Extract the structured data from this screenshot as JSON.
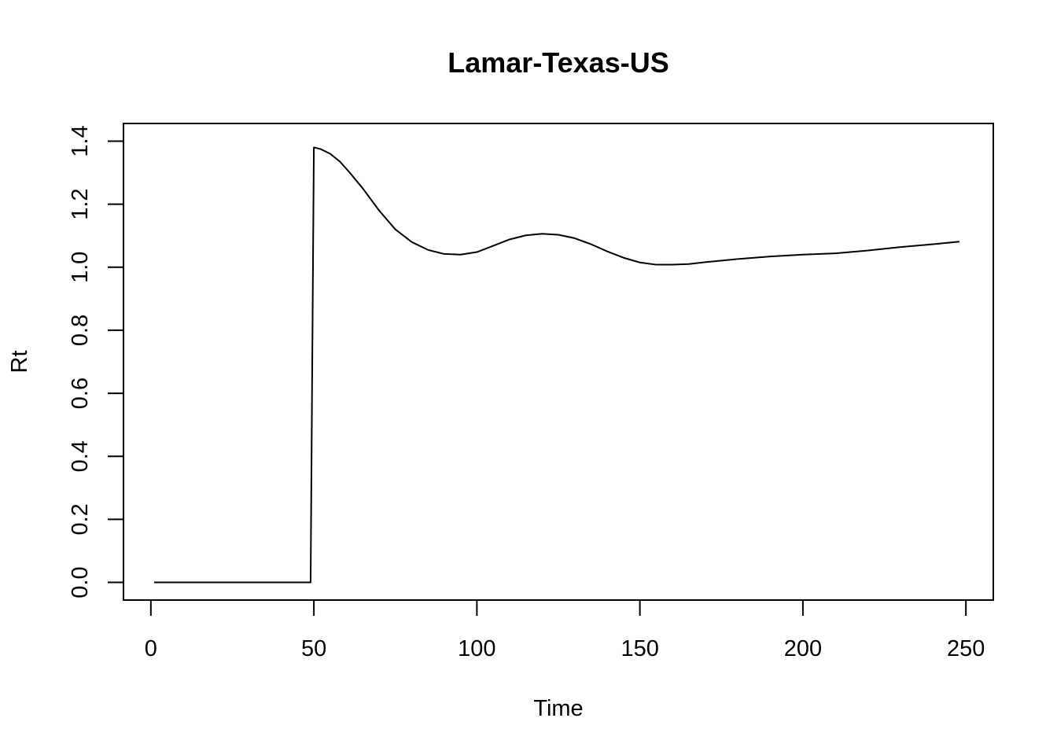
{
  "chart_data": {
    "type": "line",
    "title": "Lamar-Texas-US",
    "xlabel": "Time",
    "ylabel": "Rt",
    "xlim": [
      -8.4,
      258.4
    ],
    "ylim": [
      -0.056,
      1.456
    ],
    "xticks": [
      0,
      50,
      100,
      150,
      200,
      250
    ],
    "yticks": [
      0.0,
      0.2,
      0.4,
      0.6,
      0.8,
      1.0,
      1.2,
      1.4
    ],
    "x_tick_labels": [
      "0",
      "50",
      "100",
      "150",
      "200",
      "250"
    ],
    "y_tick_labels": [
      "0.0",
      "0.2",
      "0.4",
      "0.6",
      "0.8",
      "1.0",
      "1.2",
      "1.4"
    ],
    "grid": false,
    "legend": "none",
    "series": [
      {
        "color": "#000000",
        "x": [
          1,
          10,
          20,
          30,
          40,
          49,
          49.5,
          50,
          52,
          55,
          58,
          61,
          65,
          70,
          75,
          80,
          85,
          90,
          95,
          100,
          105,
          110,
          115,
          120,
          125,
          130,
          135,
          140,
          145,
          150,
          155,
          160,
          165,
          170,
          180,
          190,
          200,
          210,
          220,
          230,
          240,
          248
        ],
        "y": [
          0,
          0,
          0,
          0,
          0,
          0,
          0.69,
          1.38,
          1.375,
          1.36,
          1.335,
          1.3,
          1.25,
          1.18,
          1.12,
          1.08,
          1.055,
          1.042,
          1.04,
          1.048,
          1.068,
          1.088,
          1.101,
          1.106,
          1.103,
          1.092,
          1.073,
          1.05,
          1.03,
          1.015,
          1.008,
          1.008,
          1.01,
          1.016,
          1.026,
          1.034,
          1.04,
          1.044,
          1.053,
          1.064,
          1.073,
          1.081
        ]
      }
    ]
  }
}
